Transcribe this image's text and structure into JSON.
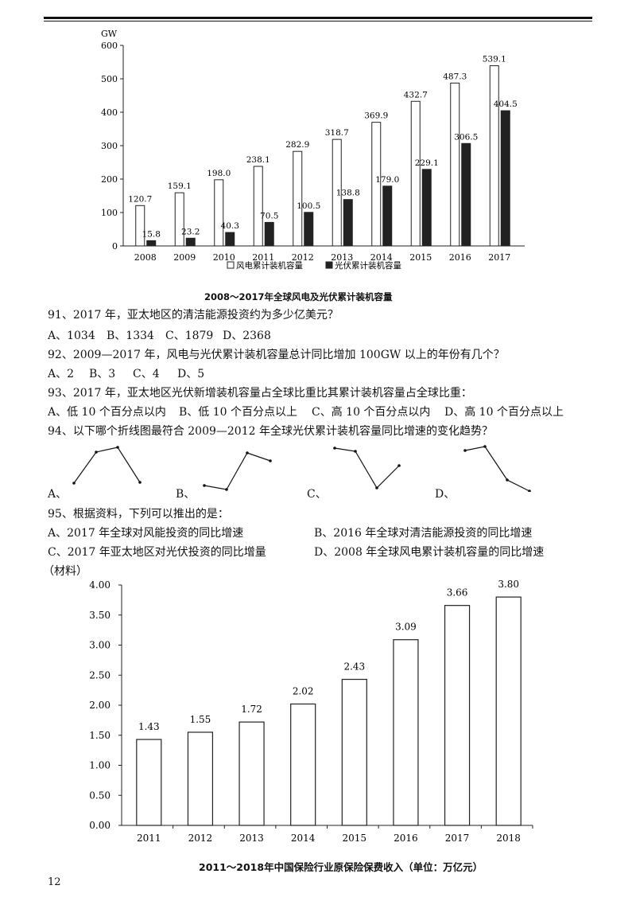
{
  "chart_data": [
    {
      "type": "bar",
      "title": "2008～2017年全球风电及光伏累计装机容量",
      "ylabel": "GW",
      "xlabel": "",
      "ylim": [
        0,
        600
      ],
      "yticks": [
        0,
        100,
        200,
        300,
        400,
        500,
        600
      ],
      "categories": [
        "2008",
        "2009",
        "2010",
        "2011",
        "2012",
        "2013",
        "2014",
        "2015",
        "2016",
        "2017"
      ],
      "series": [
        {
          "name": "风电累计装机容量",
          "style": "hollow",
          "values": [
            120.7,
            159.1,
            198.0,
            238.1,
            282.9,
            318.7,
            369.9,
            432.7,
            487.3,
            539.1
          ],
          "labels": [
            "120.7",
            "159.1",
            "198.0",
            "238.1",
            "282.9",
            "318.7",
            "369.9",
            "432.7",
            "487.3",
            "539.1"
          ]
        },
        {
          "name": "光伏累计装机容量",
          "style": "filled",
          "values": [
            15.8,
            23.2,
            40.3,
            70.5,
            100.5,
            138.8,
            179.0,
            229.1,
            306.5,
            404.5
          ],
          "labels": [
            "15.8",
            "23.2",
            "40.3",
            "70.5",
            "100.5",
            "138.8",
            "179.0",
            "229.1",
            "306.5",
            "404.5"
          ]
        }
      ],
      "legend_placement": "bottom",
      "grid": false
    },
    {
      "type": "bar",
      "title": "2011～2018年中国保险行业原保险保费收入（单位：万亿元）",
      "xlabel": "",
      "ylabel": "",
      "ylim": [
        0,
        4
      ],
      "yticks": [
        "0.00",
        "0.50",
        "1.00",
        "1.50",
        "2.00",
        "2.50",
        "3.00",
        "3.50",
        "4.00"
      ],
      "categories": [
        "2011",
        "2012",
        "2013",
        "2014",
        "2015",
        "2016",
        "2017",
        "2018"
      ],
      "values": [
        1.43,
        1.55,
        1.72,
        2.02,
        2.43,
        3.09,
        3.66,
        3.8
      ],
      "labels": [
        "1.43",
        "1.55",
        "1.72",
        "2.02",
        "2.43",
        "3.09",
        "3.66",
        "3.80"
      ],
      "grid": false
    }
  ],
  "questions": {
    "q91": {
      "text": "91、2017 年，亚太地区的清洁能源投资约为多少亿美元？",
      "options": [
        "A、1034",
        "B、1334",
        "C、1879",
        "D、2368"
      ]
    },
    "q92": {
      "text": "92、2009—2017 年，风电与光伏累计装机容量总计同比增加 100GW 以上的年份有几个？",
      "options": [
        "A、2",
        "B、3",
        "C、4",
        "D、5"
      ]
    },
    "q93": {
      "text": "93、2017 年，亚太地区光伏新增装机容量占全球比重比其累计装机容量占全球比重：",
      "options": [
        "A、低 10 个百分点以内",
        "B、低 10 个百分点以上",
        "C、高 10 个百分点以内",
        "D、高 10 个百分点以上"
      ]
    },
    "q94": {
      "text": "94、以下哪个折线图最符合 2009—2012 年全球光伏累计装机容量同比增速的变化趋势？",
      "options": [
        "A、",
        "B、",
        "C、",
        "D、"
      ]
    },
    "q95": {
      "text": "95、根据资料，下列可以推出的是：",
      "options": [
        "A、2017 年全球对风能投资的同比增速",
        "B、2016 年全球对清洁能源投资的同比增速",
        "C、2017 年亚太地区对光伏投资的同比增量",
        "D、2008 年全球风电累计装机容量的同比增速"
      ]
    }
  },
  "section_label": "（材料）",
  "page_number": "12"
}
